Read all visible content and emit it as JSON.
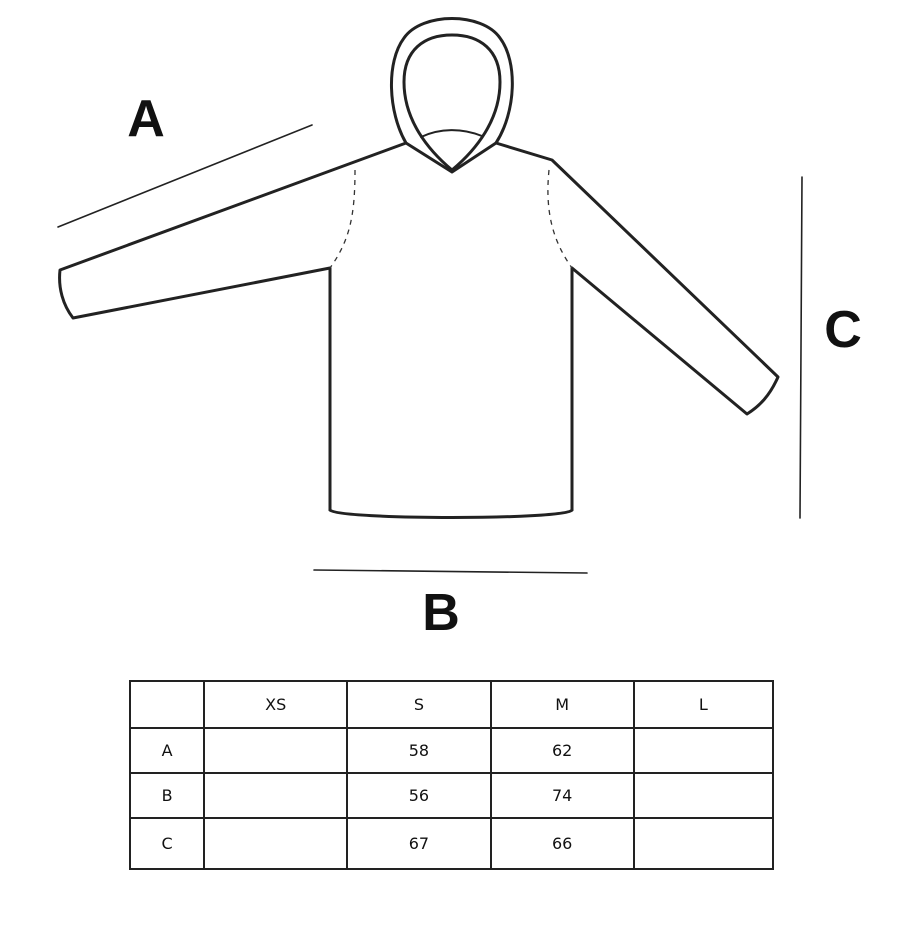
{
  "diagram": {
    "label_a": "A",
    "label_b": "B",
    "label_c": "C"
  },
  "table": {
    "corner": "",
    "sizes": [
      "XS",
      "S",
      "M",
      "L"
    ],
    "rows": [
      {
        "label": "A",
        "values": [
          "",
          "58",
          "62",
          ""
        ]
      },
      {
        "label": "B",
        "values": [
          "",
          "56",
          "74",
          ""
        ]
      },
      {
        "label": "C",
        "values": [
          "",
          "67",
          "66",
          ""
        ]
      }
    ]
  }
}
